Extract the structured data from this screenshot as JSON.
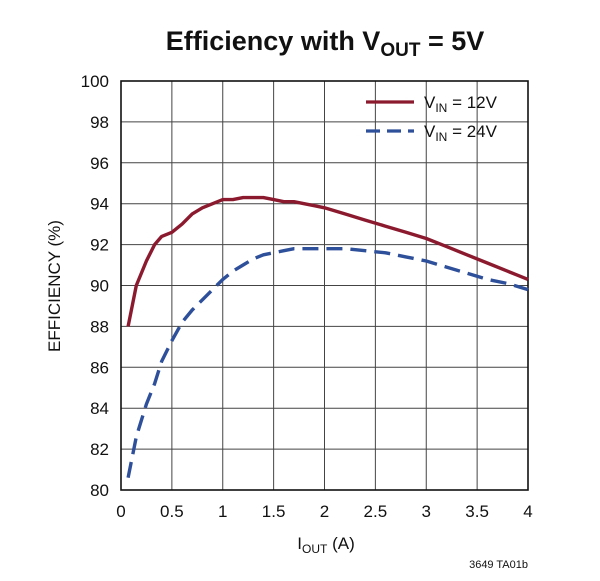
{
  "chart_data": {
    "type": "line",
    "title": {
      "main": "Efficiency with V",
      "sub": "OUT",
      "tail": " = 5V"
    },
    "xlabel": {
      "main": "I",
      "sub": "OUT",
      "tail": " (A)"
    },
    "ylabel": "EFFICIENCY (%)",
    "xlim": [
      0,
      4
    ],
    "ylim": [
      80,
      100
    ],
    "xticks": [
      "0",
      "0.5",
      "1",
      "1.5",
      "2",
      "2.5",
      "3",
      "3.5",
      "4"
    ],
    "yticks": [
      "80",
      "82",
      "84",
      "86",
      "88",
      "90",
      "92",
      "94",
      "96",
      "98",
      "100"
    ],
    "grid": true,
    "legend_position": "top-right",
    "series": [
      {
        "name": {
          "main": "V",
          "sub": "IN",
          "tail": " = 12V"
        },
        "color": "#8b1a2f",
        "style": "solid",
        "x": [
          0.07,
          0.15,
          0.25,
          0.33,
          0.4,
          0.5,
          0.6,
          0.7,
          0.8,
          0.9,
          1.0,
          1.1,
          1.2,
          1.3,
          1.4,
          1.5,
          1.6,
          1.7,
          1.8,
          1.9,
          2.0,
          2.2,
          2.4,
          2.6,
          2.8,
          3.0,
          3.2,
          3.4,
          3.6,
          3.8,
          3.9,
          4.0
        ],
        "y": [
          88.0,
          90.0,
          91.2,
          92.0,
          92.4,
          92.6,
          93.0,
          93.5,
          93.8,
          94.0,
          94.2,
          94.2,
          94.3,
          94.3,
          94.3,
          94.2,
          94.1,
          94.1,
          94.0,
          93.9,
          93.8,
          93.5,
          93.2,
          92.9,
          92.6,
          92.3,
          91.9,
          91.5,
          91.1,
          90.7,
          90.5,
          90.3
        ]
      },
      {
        "name": {
          "main": "V",
          "sub": "IN",
          "tail": " = 24V"
        },
        "color": "#2e4f9a",
        "style": "dashed",
        "x": [
          0.07,
          0.15,
          0.25,
          0.33,
          0.4,
          0.5,
          0.6,
          0.7,
          0.8,
          0.9,
          1.0,
          1.1,
          1.2,
          1.3,
          1.4,
          1.5,
          1.6,
          1.7,
          1.8,
          1.9,
          2.0,
          2.2,
          2.4,
          2.6,
          2.8,
          3.0,
          3.2,
          3.4,
          3.6,
          3.8,
          4.0
        ],
        "y": [
          80.6,
          82.6,
          84.2,
          85.2,
          86.3,
          87.3,
          88.2,
          88.8,
          89.3,
          89.8,
          90.3,
          90.7,
          91.0,
          91.3,
          91.5,
          91.6,
          91.7,
          91.8,
          91.8,
          91.8,
          91.8,
          91.8,
          91.7,
          91.6,
          91.4,
          91.2,
          90.9,
          90.6,
          90.3,
          90.1,
          89.8
        ]
      }
    ],
    "annotation": "3649 TA01b"
  }
}
